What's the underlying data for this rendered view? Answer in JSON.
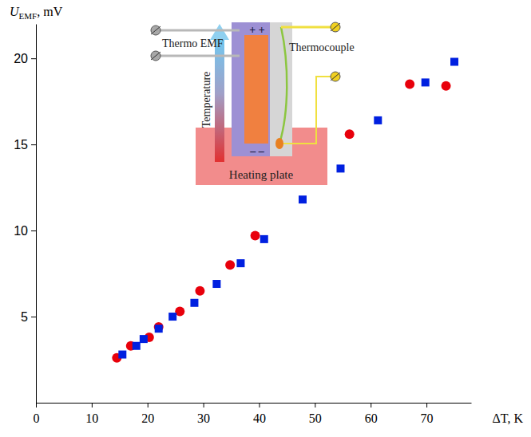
{
  "chart_data": {
    "type": "scatter",
    "xlabel": "ΔT, K",
    "ylabel": {
      "main": "U",
      "sub": "EMF",
      "rest": ", mV"
    },
    "xlim": [
      0,
      78
    ],
    "ylim": [
      0,
      22
    ],
    "xticks": [
      0,
      10,
      20,
      30,
      40,
      50,
      60,
      70
    ],
    "yticks": [
      5,
      10,
      15,
      20
    ],
    "grid": false,
    "series": [
      {
        "color": "#e8000b",
        "marker": "circle",
        "x": [
          14.5,
          17,
          20.3,
          22,
          25.8,
          29.4,
          34.8,
          39.3,
          56.2,
          67,
          73.5
        ],
        "values": [
          2.6,
          3.3,
          3.8,
          4.4,
          5.3,
          6.5,
          8.0,
          9.7,
          15.6,
          18.5,
          18.4
        ]
      },
      {
        "color": "#0020e0",
        "marker": "square",
        "x": [
          15.5,
          18,
          19.3,
          22,
          24.5,
          28.4,
          32.4,
          36.7,
          40.9,
          47.8,
          54.6,
          61.3,
          69.8,
          75
        ],
        "values": [
          2.8,
          3.3,
          3.7,
          4.3,
          5.0,
          5.8,
          6.9,
          8.1,
          9.5,
          11.8,
          13.6,
          16.4,
          18.6,
          19.8
        ]
      }
    ]
  },
  "inset": {
    "thermo_emf": "Thermo EMF",
    "thermocouple": "Thermocouple",
    "temperature": "Temperature",
    "heating_plate": "Heating plate",
    "plus": "+ +",
    "minus": "– –"
  }
}
